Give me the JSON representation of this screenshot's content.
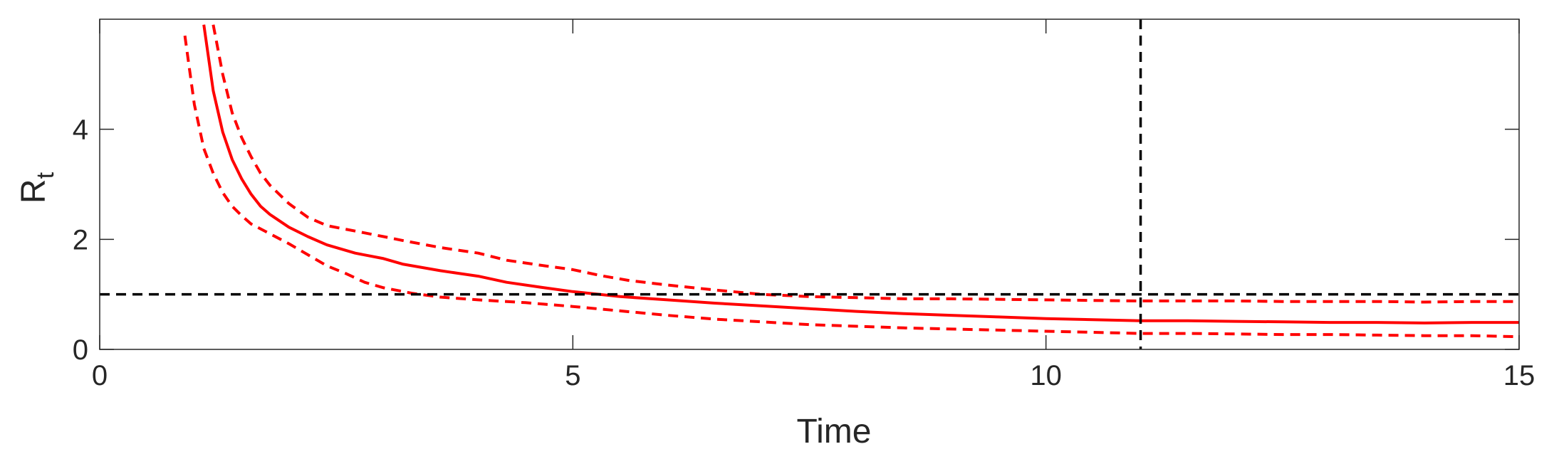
{
  "chart_data": {
    "type": "line",
    "xlabel": "Time",
    "ylabel": "R",
    "ylabel_subscript": "t",
    "xlim": [
      0,
      15
    ],
    "ylim": [
      0,
      6
    ],
    "xticks": [
      0,
      5,
      10,
      15
    ],
    "yticks": [
      0,
      2,
      4
    ],
    "grid": false,
    "colors": {
      "series": "#ff0000",
      "reference": "#000000",
      "axis": "#262626"
    },
    "series": [
      {
        "role": "estimate",
        "style": "solid",
        "x": [
          1.1,
          1.2,
          1.3,
          1.4,
          1.5,
          1.6,
          1.7,
          1.8,
          2.0,
          2.2,
          2.4,
          2.7,
          3.0,
          3.2,
          3.6,
          4.0,
          4.3,
          4.7,
          5.0,
          5.5,
          6.0,
          6.5,
          7.0,
          7.5,
          8.0,
          8.5,
          9.0,
          9.5,
          10.0,
          10.5,
          11.0,
          11.5,
          12.0,
          12.5,
          13.0,
          13.5,
          14.0,
          14.5,
          15.0
        ],
        "y": [
          5.9,
          4.7,
          3.95,
          3.45,
          3.1,
          2.82,
          2.6,
          2.45,
          2.22,
          2.05,
          1.9,
          1.75,
          1.65,
          1.55,
          1.43,
          1.33,
          1.22,
          1.12,
          1.05,
          0.96,
          0.9,
          0.84,
          0.79,
          0.74,
          0.69,
          0.65,
          0.62,
          0.59,
          0.56,
          0.54,
          0.52,
          0.52,
          0.51,
          0.5,
          0.49,
          0.49,
          0.48,
          0.49,
          0.49
        ]
      },
      {
        "role": "upper bound",
        "style": "dashed",
        "x": [
          1.2,
          1.3,
          1.4,
          1.5,
          1.6,
          1.7,
          1.8,
          2.0,
          2.2,
          2.4,
          2.7,
          3.0,
          3.2,
          3.6,
          4.0,
          4.3,
          4.7,
          5.0,
          5.3,
          5.6,
          6.0,
          6.5,
          7.0,
          7.5,
          8.0,
          8.5,
          9.0,
          9.5,
          10.0,
          10.5,
          11.0,
          11.5,
          12.0,
          12.5,
          13.0,
          13.5,
          14.0,
          14.5,
          15.0
        ],
        "y": [
          5.9,
          5.0,
          4.3,
          3.85,
          3.5,
          3.2,
          2.98,
          2.65,
          2.4,
          2.25,
          2.15,
          2.05,
          1.98,
          1.85,
          1.75,
          1.62,
          1.52,
          1.45,
          1.34,
          1.25,
          1.17,
          1.08,
          1.0,
          0.96,
          0.94,
          0.92,
          0.92,
          0.91,
          0.9,
          0.89,
          0.88,
          0.88,
          0.88,
          0.87,
          0.87,
          0.87,
          0.86,
          0.87,
          0.87
        ]
      },
      {
        "role": "lower bound",
        "style": "dashed",
        "x": [
          0.9,
          1.0,
          1.1,
          1.2,
          1.3,
          1.4,
          1.5,
          1.6,
          1.8,
          2.0,
          2.2,
          2.4,
          2.6,
          2.8,
          3.0,
          3.3,
          3.6,
          4.0,
          4.5,
          5.0,
          5.5,
          6.0,
          6.5,
          7.0,
          7.5,
          8.0,
          8.5,
          9.0,
          9.5,
          10.0,
          10.5,
          11.0,
          11.5,
          12.0,
          12.5,
          13.0,
          13.5,
          14.0,
          14.5,
          15.0
        ],
        "y": [
          5.7,
          4.45,
          3.65,
          3.2,
          2.85,
          2.6,
          2.43,
          2.28,
          2.1,
          1.92,
          1.72,
          1.52,
          1.38,
          1.22,
          1.12,
          1.02,
          0.95,
          0.9,
          0.85,
          0.78,
          0.7,
          0.62,
          0.55,
          0.5,
          0.45,
          0.42,
          0.39,
          0.37,
          0.35,
          0.33,
          0.31,
          0.29,
          0.29,
          0.28,
          0.27,
          0.27,
          0.26,
          0.25,
          0.25,
          0.23
        ]
      }
    ],
    "reference_lines": [
      {
        "orientation": "horizontal",
        "value": 1,
        "style": "dashed"
      },
      {
        "orientation": "vertical",
        "value": 11,
        "style": "dashed"
      }
    ]
  }
}
